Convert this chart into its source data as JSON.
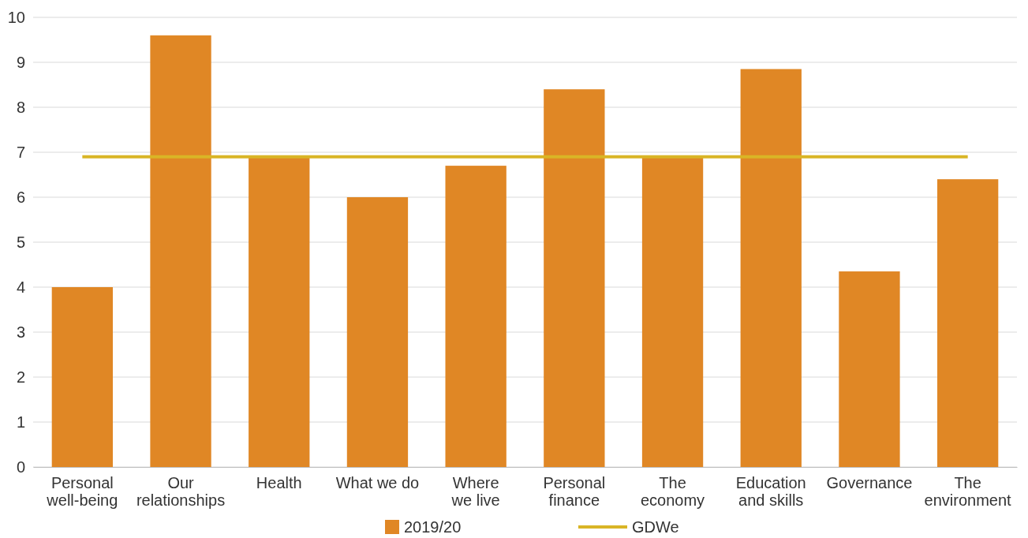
{
  "chart_data": {
    "type": "bar",
    "categories": [
      "Personal well-being",
      "Our relationships",
      "Health",
      "What we do",
      "Where we live",
      "Personal finance",
      "The economy",
      "Education and skills",
      "Governance",
      "The environment"
    ],
    "series": [
      {
        "name": "2019/20",
        "color": "#e08725",
        "values": [
          4.0,
          9.6,
          6.9,
          6.0,
          6.7,
          8.4,
          6.9,
          8.85,
          4.35,
          6.4
        ]
      },
      {
        "name": "GDWe",
        "type": "line",
        "color": "#d9b526",
        "values": [
          6.9,
          6.9,
          6.9,
          6.9,
          6.9,
          6.9,
          6.9,
          6.9,
          6.9,
          6.9
        ]
      }
    ],
    "ylim": [
      0,
      10
    ],
    "yticks": [
      0,
      1,
      2,
      3,
      4,
      5,
      6,
      7,
      8,
      9,
      10
    ],
    "grid": "y",
    "legend": "bottom",
    "marker": "none"
  }
}
